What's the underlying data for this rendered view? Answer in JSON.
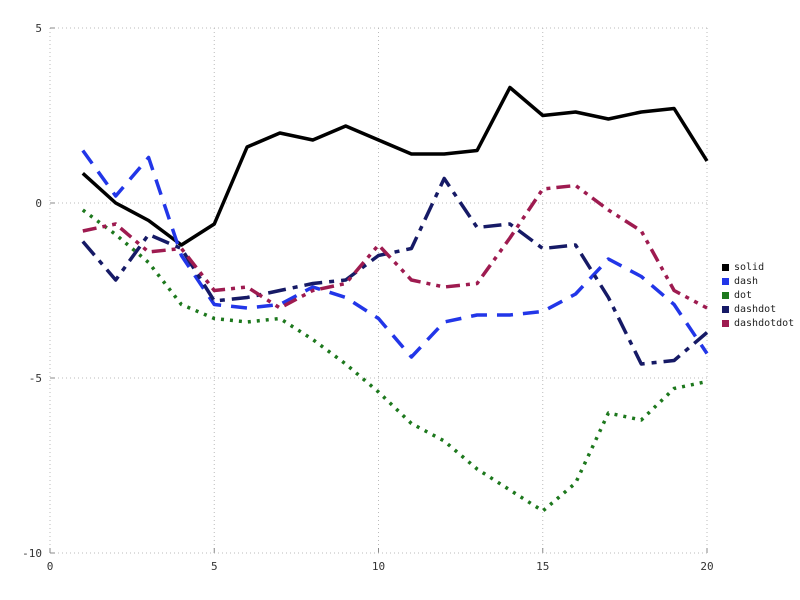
{
  "chart_data": {
    "type": "line",
    "title": "",
    "xlabel": "",
    "ylabel": "",
    "xlim": [
      0,
      20
    ],
    "ylim": [
      -10,
      5
    ],
    "xticks": [
      0,
      5,
      10,
      15,
      20
    ],
    "yticks": [
      -10,
      -5,
      0,
      5
    ],
    "grid": true,
    "grid_style": "dotted",
    "legend_position": "right",
    "x": [
      1,
      2,
      3,
      4,
      5,
      6,
      7,
      8,
      9,
      10,
      11,
      12,
      13,
      14,
      15,
      16,
      17,
      18,
      19,
      20
    ],
    "series": [
      {
        "name": "solid",
        "color": "#000000",
        "dash": "solid",
        "values": [
          0.85,
          0.0,
          -0.5,
          -1.2,
          -0.6,
          1.6,
          2.0,
          1.8,
          2.2,
          1.8,
          1.4,
          1.4,
          1.5,
          3.3,
          2.5,
          2.6,
          2.4,
          2.6,
          2.7,
          1.2
        ]
      },
      {
        "name": "dash",
        "color": "#2236e8",
        "dash": "dash",
        "values": [
          1.5,
          0.2,
          1.3,
          -1.5,
          -2.9,
          -3.0,
          -2.9,
          -2.4,
          -2.7,
          -3.3,
          -4.4,
          -3.4,
          -3.2,
          -3.2,
          -3.1,
          -2.6,
          -1.6,
          -2.1,
          -2.9,
          -4.3
        ]
      },
      {
        "name": "dot",
        "color": "#1d781d",
        "dash": "dot",
        "values": [
          -0.2,
          -0.9,
          -1.7,
          -2.9,
          -3.3,
          -3.4,
          -3.3,
          -3.9,
          -4.6,
          -5.4,
          -6.3,
          -6.8,
          -7.6,
          -8.2,
          -8.8,
          -8.0,
          -6.0,
          -6.2,
          -5.3,
          -5.1
        ]
      },
      {
        "name": "dashdot",
        "color": "#161a66",
        "dash": "dashdot",
        "values": [
          -1.1,
          -2.2,
          -0.9,
          -1.3,
          -2.8,
          -2.7,
          -2.5,
          -2.3,
          -2.2,
          -1.5,
          -1.3,
          0.7,
          -0.7,
          -0.6,
          -1.3,
          -1.2,
          -2.7,
          -4.6,
          -4.5,
          -3.7
        ]
      },
      {
        "name": "dashdotdot",
        "color": "#9e1b50",
        "dash": "dashdotdot",
        "values": [
          -0.8,
          -0.6,
          -1.4,
          -1.3,
          -2.5,
          -2.4,
          -3.0,
          -2.5,
          -2.3,
          -1.2,
          -2.2,
          -2.4,
          -2.3,
          -1.0,
          0.4,
          0.5,
          -0.2,
          -0.8,
          -2.5,
          -3.0
        ]
      }
    ]
  },
  "style": {
    "grid_color": "#bbbbbb",
    "tick_label_color": "#333333",
    "background": "#ffffff",
    "line_width": 3.5
  }
}
